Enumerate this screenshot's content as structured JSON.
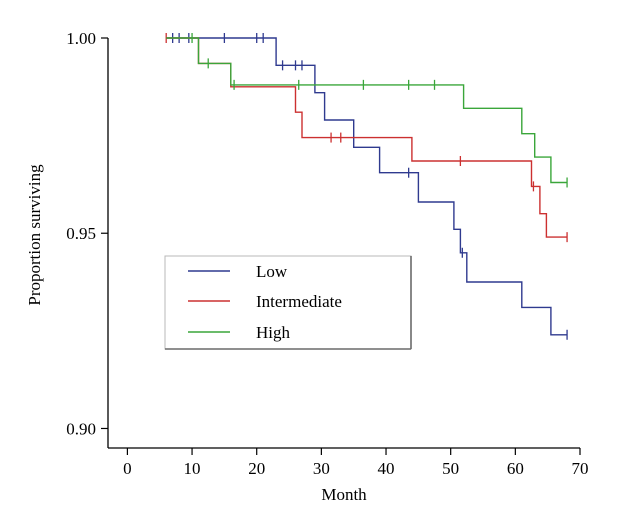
{
  "chart_data": {
    "type": "line",
    "title": "",
    "xlabel": "Month",
    "ylabel": "Proportion surviving",
    "xlim": [
      -3,
      70
    ],
    "ylim": [
      0.895,
      1.0
    ],
    "xticks": [
      0,
      10,
      20,
      30,
      40,
      50,
      60,
      70
    ],
    "xtick_labels": [
      "0",
      "10",
      "20",
      "30",
      "40",
      "50",
      "60",
      "70"
    ],
    "yticks": [
      0.9,
      0.95,
      1.0
    ],
    "ytick_labels": [
      "0.90",
      "0.95",
      "1.00"
    ],
    "grid": false,
    "legend_position": "center-left",
    "series": [
      {
        "name": "Low",
        "color": "#2f3a8f",
        "step_points": [
          [
            6,
            1.0
          ],
          [
            23,
            1.0
          ],
          [
            23,
            0.993
          ],
          [
            29,
            0.993
          ],
          [
            29,
            0.986
          ],
          [
            30.5,
            0.986
          ],
          [
            30.5,
            0.979
          ],
          [
            35,
            0.979
          ],
          [
            35,
            0.972
          ],
          [
            39,
            0.972
          ],
          [
            39,
            0.9655
          ],
          [
            45,
            0.9655
          ],
          [
            45,
            0.958
          ],
          [
            50.5,
            0.958
          ],
          [
            50.5,
            0.951
          ],
          [
            51.5,
            0.951
          ],
          [
            51.5,
            0.945
          ],
          [
            52.5,
            0.945
          ],
          [
            52.5,
            0.9375
          ],
          [
            61,
            0.9375
          ],
          [
            61,
            0.931
          ],
          [
            65.5,
            0.931
          ],
          [
            65.5,
            0.924
          ],
          [
            68,
            0.924
          ]
        ],
        "censor_marks": [
          [
            7,
            1.0
          ],
          [
            8,
            1.0
          ],
          [
            9.5,
            1.0
          ],
          [
            15,
            1.0
          ],
          [
            20,
            1.0
          ],
          [
            21,
            1.0
          ],
          [
            24,
            0.993
          ],
          [
            26,
            0.993
          ],
          [
            27,
            0.993
          ],
          [
            43.5,
            0.9655
          ],
          [
            51.8,
            0.945
          ],
          [
            68,
            0.924
          ]
        ]
      },
      {
        "name": "Intermediate",
        "color": "#cc3030",
        "step_points": [
          [
            6,
            1.0
          ],
          [
            11,
            1.0
          ],
          [
            11,
            0.9935
          ],
          [
            16,
            0.9935
          ],
          [
            16,
            0.9875
          ],
          [
            26,
            0.9875
          ],
          [
            26,
            0.981
          ],
          [
            27,
            0.981
          ],
          [
            27,
            0.9745
          ],
          [
            44,
            0.9745
          ],
          [
            44,
            0.9685
          ],
          [
            62.5,
            0.9685
          ],
          [
            62.5,
            0.962
          ],
          [
            63.8,
            0.962
          ],
          [
            63.8,
            0.955
          ],
          [
            64.8,
            0.955
          ],
          [
            64.8,
            0.949
          ],
          [
            68,
            0.949
          ]
        ],
        "censor_marks": [
          [
            6,
            1.0
          ],
          [
            31.5,
            0.9745
          ],
          [
            33,
            0.9745
          ],
          [
            51.5,
            0.9685
          ],
          [
            62.8,
            0.962
          ],
          [
            68,
            0.949
          ]
        ]
      },
      {
        "name": "High",
        "color": "#3aa63a",
        "step_points": [
          [
            6,
            1.0
          ],
          [
            11,
            1.0
          ],
          [
            11,
            0.9935
          ],
          [
            16,
            0.9935
          ],
          [
            16,
            0.988
          ],
          [
            52,
            0.988
          ],
          [
            52,
            0.982
          ],
          [
            61,
            0.982
          ],
          [
            61,
            0.9755
          ],
          [
            63,
            0.9755
          ],
          [
            63,
            0.9695
          ],
          [
            65.5,
            0.9695
          ],
          [
            65.5,
            0.963
          ],
          [
            68,
            0.963
          ]
        ],
        "censor_marks": [
          [
            10,
            1.0
          ],
          [
            12.5,
            0.9935
          ],
          [
            16.5,
            0.988
          ],
          [
            26.5,
            0.988
          ],
          [
            36.5,
            0.988
          ],
          [
            43.5,
            0.988
          ],
          [
            47.5,
            0.988
          ],
          [
            68,
            0.963
          ]
        ]
      }
    ]
  }
}
